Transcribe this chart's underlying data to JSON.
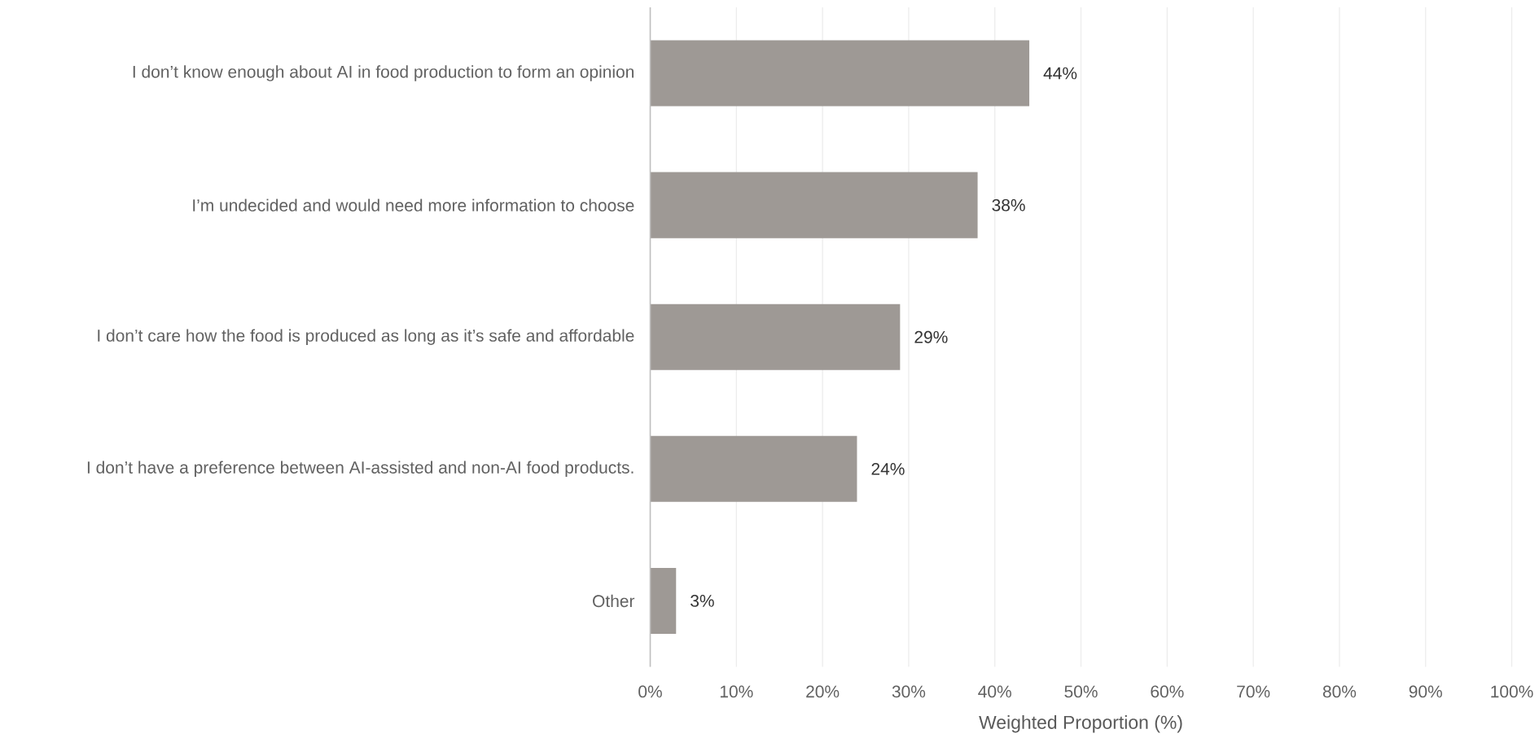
{
  "chart_data": {
    "type": "bar",
    "orientation": "horizontal",
    "xlabel": "Weighted Proportion (%)",
    "categories": [
      "I don’t know enough about AI in food production to form an opinion",
      "I’m undecided and would need more information to choose",
      "I don’t care how the food is produced as long as it’s safe and affordable",
      "I don’t have a preference between AI-assisted and non-AI food products.",
      "Other"
    ],
    "values": [
      44,
      38,
      29,
      24,
      3
    ],
    "value_labels": [
      "44%",
      "38%",
      "29%",
      "24%",
      "3%"
    ],
    "color": "#9e9995",
    "xlim": [
      0,
      100
    ],
    "xticks": [
      {
        "value": 0,
        "label": "0%"
      },
      {
        "value": 10,
        "label": "10%"
      },
      {
        "value": 20,
        "label": "20%"
      },
      {
        "value": 30,
        "label": "30%"
      },
      {
        "value": 40,
        "label": "40%"
      },
      {
        "value": 50,
        "label": "50%"
      },
      {
        "value": 60,
        "label": "60%"
      },
      {
        "value": 70,
        "label": "70%"
      },
      {
        "value": 80,
        "label": "80%"
      },
      {
        "value": 90,
        "label": "90%"
      },
      {
        "value": 100,
        "label": "100%"
      }
    ],
    "grid": "x"
  }
}
